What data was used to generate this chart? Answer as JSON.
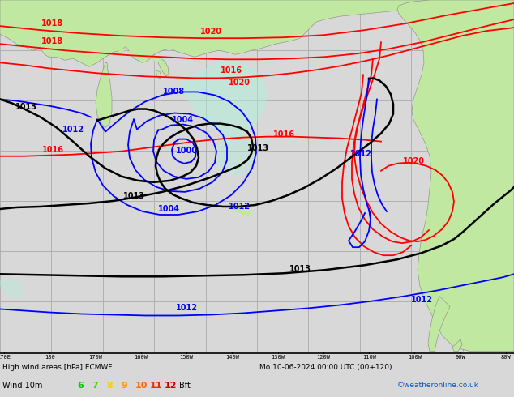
{
  "title_left": "High wind areas [hPa] ECMWF",
  "title_right": "Mo 10-06-2024 00:00 UTC (00+120)",
  "legend_label": "Wind 10m",
  "bft_labels": [
    "6",
    "7",
    "8",
    "9",
    "10",
    "11",
    "12",
    "Bft"
  ],
  "bft_colors": [
    "#00cc00",
    "#33dd00",
    "#ffcc00",
    "#ff9900",
    "#ff6600",
    "#ff2200",
    "#cc0000",
    "#000000"
  ],
  "copyright": "©weatheronline.co.uk",
  "ocean_color": "#d8d8d8",
  "land_color": "#c0e8a0",
  "low_fill_color": "#b0f0d8",
  "grid_color": "#aaaaaa",
  "fig_bg": "#d8d8d8",
  "figsize": [
    6.34,
    4.9
  ],
  "dpi": 100
}
